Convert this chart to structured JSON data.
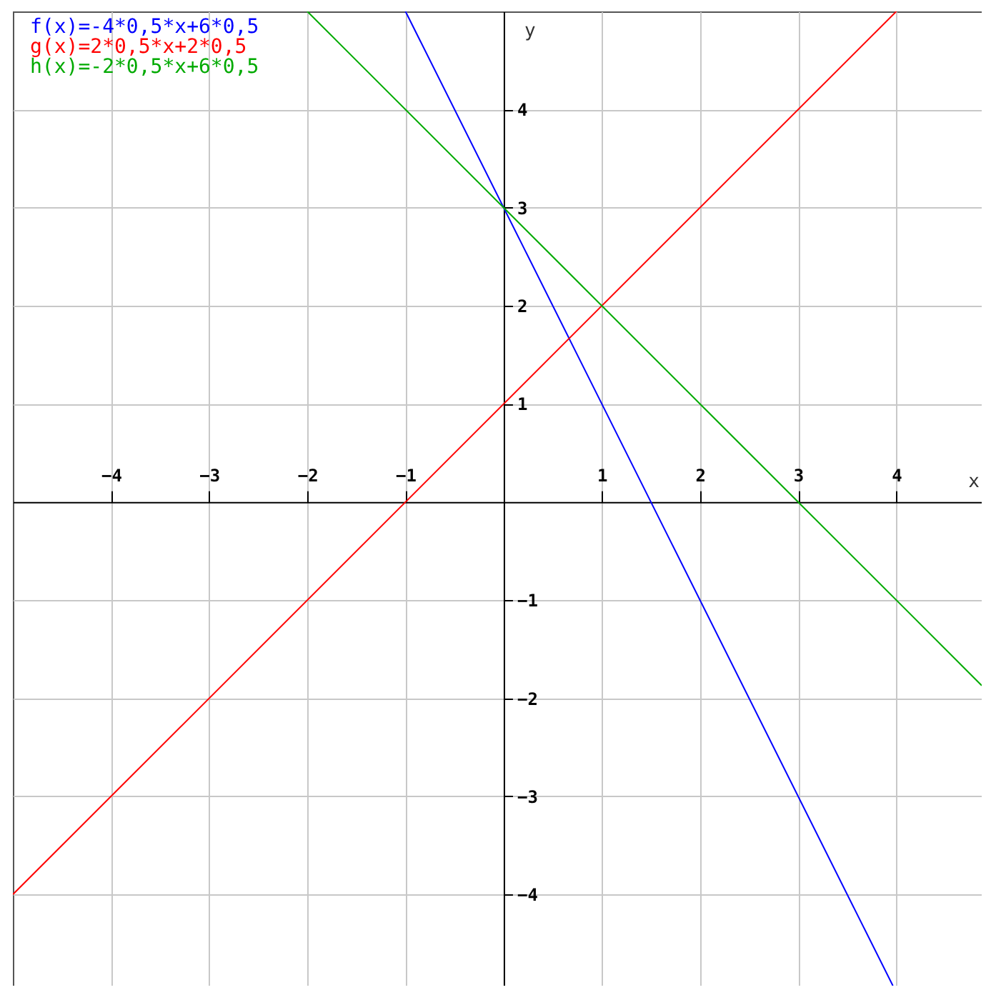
{
  "chart_data": {
    "type": "line",
    "xlabel": "x",
    "ylabel": "y",
    "xlim": [
      -5,
      4.87
    ],
    "ylim": [
      -4.93,
      5
    ],
    "xticks": [
      -4,
      -3,
      -2,
      -1,
      1,
      2,
      3,
      4
    ],
    "yticks": [
      -4,
      -3,
      -2,
      -1,
      1,
      2,
      3,
      4
    ],
    "grid": true,
    "legend": "top left",
    "line_style": "solid",
    "marker": "none",
    "series": [
      {
        "name": "f(x)=-4*0,5*x+6*0,5",
        "color": "#0000ff",
        "x": [
          -1,
          3.965
        ],
        "values": [
          5,
          -4.93
        ]
      },
      {
        "name": "g(x)=2*0,5*x+2*0,5",
        "color": "#ff0000",
        "x": [
          -5,
          4
        ],
        "values": [
          -4,
          5
        ]
      },
      {
        "name": "h(x)=-2*0,5*x+6*0,5",
        "color": "#00aa00",
        "x": [
          -2,
          4.87
        ],
        "values": [
          5,
          -1.87
        ]
      }
    ]
  }
}
